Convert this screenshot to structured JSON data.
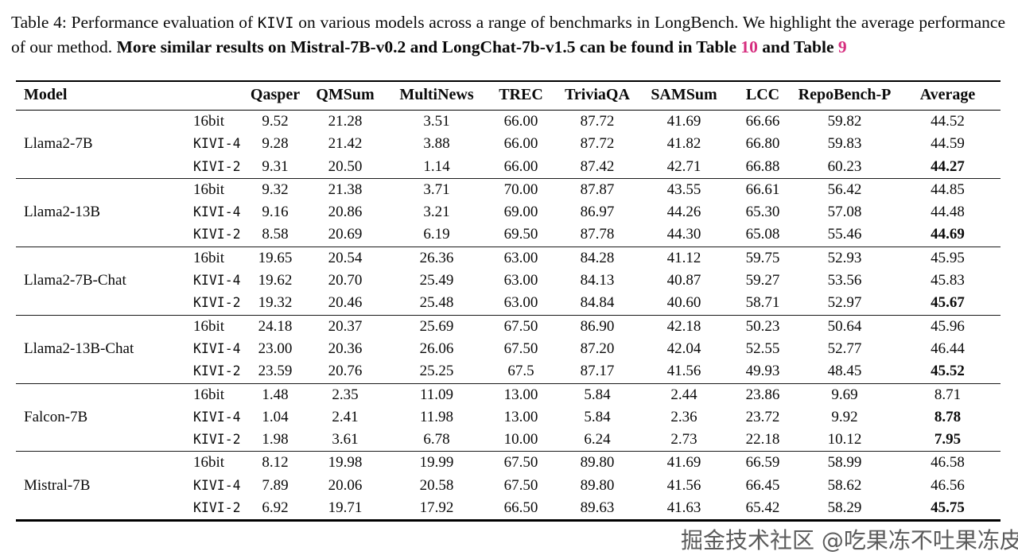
{
  "caption": {
    "prefix": "Table 4: Performance evaluation of ",
    "kivi": "KIVI",
    "middle": " on various models across a range of benchmarks in LongBench. We highlight the average performance of our method. ",
    "bold1": "More similar results on Mistral-7B-v0.2 and LongChat-7b-v1.5 can be found in Table ",
    "ref1": "10",
    "bold2": " and Table ",
    "ref2": "9"
  },
  "accent_color": "#d62e7f",
  "watermark": {
    "text": "掘金技术社区 @吃果冻不吐果冻皮"
  },
  "chart_data": {
    "type": "table",
    "title": "Performance evaluation of KIVI on various models across a range of benchmarks in LongBench"
  },
  "table": {
    "columns": [
      "Model",
      "",
      "Qasper",
      "QMSum",
      "MultiNews",
      "TREC",
      "TriviaQA",
      "SAMSum",
      "LCC",
      "RepoBench-P",
      "Average"
    ],
    "groups": [
      {
        "model": "Llama2-7B",
        "rows": [
          {
            "method": "16bit",
            "mono": false,
            "values": [
              "9.52",
              "21.28",
              "3.51",
              "66.00",
              "87.72",
              "41.69",
              "66.66",
              "59.82"
            ],
            "average": "44.52",
            "average_bold": false
          },
          {
            "method": "KIVI-4",
            "mono": true,
            "values": [
              "9.28",
              "21.42",
              "3.88",
              "66.00",
              "87.72",
              "41.82",
              "66.80",
              "59.83"
            ],
            "average": "44.59",
            "average_bold": false
          },
          {
            "method": "KIVI-2",
            "mono": true,
            "values": [
              "9.31",
              "20.50",
              "1.14",
              "66.00",
              "87.42",
              "42.71",
              "66.88",
              "60.23"
            ],
            "average": "44.27",
            "average_bold": true
          }
        ]
      },
      {
        "model": "Llama2-13B",
        "rows": [
          {
            "method": "16bit",
            "mono": false,
            "values": [
              "9.32",
              "21.38",
              "3.71",
              "70.00",
              "87.87",
              "43.55",
              "66.61",
              "56.42"
            ],
            "average": "44.85",
            "average_bold": false
          },
          {
            "method": "KIVI-4",
            "mono": true,
            "values": [
              "9.16",
              "20.86",
              "3.21",
              "69.00",
              "86.97",
              "44.26",
              "65.30",
              "57.08"
            ],
            "average": "44.48",
            "average_bold": false
          },
          {
            "method": "KIVI-2",
            "mono": true,
            "values": [
              "8.58",
              "20.69",
              "6.19",
              "69.50",
              "87.78",
              "44.30",
              "65.08",
              "55.46"
            ],
            "average": "44.69",
            "average_bold": true
          }
        ]
      },
      {
        "model": "Llama2-7B-Chat",
        "rows": [
          {
            "method": "16bit",
            "mono": false,
            "values": [
              "19.65",
              "20.54",
              "26.36",
              "63.00",
              "84.28",
              "41.12",
              "59.75",
              "52.93"
            ],
            "average": "45.95",
            "average_bold": false
          },
          {
            "method": "KIVI-4",
            "mono": true,
            "values": [
              "19.62",
              "20.70",
              "25.49",
              "63.00",
              "84.13",
              "40.87",
              "59.27",
              "53.56"
            ],
            "average": "45.83",
            "average_bold": false
          },
          {
            "method": "KIVI-2",
            "mono": true,
            "values": [
              "19.32",
              "20.46",
              "25.48",
              "63.00",
              "84.84",
              "40.60",
              "58.71",
              "52.97"
            ],
            "average": "45.67",
            "average_bold": true
          }
        ]
      },
      {
        "model": "Llama2-13B-Chat",
        "rows": [
          {
            "method": "16bit",
            "mono": false,
            "values": [
              "24.18",
              "20.37",
              "25.69",
              "67.50",
              "86.90",
              "42.18",
              "50.23",
              "50.64"
            ],
            "average": "45.96",
            "average_bold": false
          },
          {
            "method": "KIVI-4",
            "mono": true,
            "values": [
              "23.00",
              "20.36",
              "26.06",
              "67.50",
              "87.20",
              "42.04",
              "52.55",
              "52.77"
            ],
            "average": "46.44",
            "average_bold": false
          },
          {
            "method": "KIVI-2",
            "mono": true,
            "values": [
              "23.59",
              "20.76",
              "25.25",
              "67.5",
              "87.17",
              "41.56",
              "49.93",
              "48.45"
            ],
            "average": "45.52",
            "average_bold": true
          }
        ]
      },
      {
        "model": "Falcon-7B",
        "rows": [
          {
            "method": "16bit",
            "mono": false,
            "values": [
              "1.48",
              "2.35",
              "11.09",
              "13.00",
              "5.84",
              "2.44",
              "23.86",
              "9.69"
            ],
            "average": "8.71",
            "average_bold": false
          },
          {
            "method": "KIVI-4",
            "mono": true,
            "values": [
              "1.04",
              "2.41",
              "11.98",
              "13.00",
              "5.84",
              "2.36",
              "23.72",
              "9.92"
            ],
            "average": "8.78",
            "average_bold": true
          },
          {
            "method": "KIVI-2",
            "mono": true,
            "values": [
              "1.98",
              "3.61",
              "6.78",
              "10.00",
              "6.24",
              "2.73",
              "22.18",
              "10.12"
            ],
            "average": "7.95",
            "average_bold": true
          }
        ]
      },
      {
        "model": "Mistral-7B",
        "rows": [
          {
            "method": "16bit",
            "mono": false,
            "values": [
              "8.12",
              "19.98",
              "19.99",
              "67.50",
              "89.80",
              "41.69",
              "66.59",
              "58.99"
            ],
            "average": "46.58",
            "average_bold": false
          },
          {
            "method": "KIVI-4",
            "mono": true,
            "values": [
              "7.89",
              "20.06",
              "20.58",
              "67.50",
              "89.80",
              "41.56",
              "66.45",
              "58.62"
            ],
            "average": "46.56",
            "average_bold": false
          },
          {
            "method": "KIVI-2",
            "mono": true,
            "values": [
              "6.92",
              "19.71",
              "17.92",
              "66.50",
              "89.63",
              "41.63",
              "65.42",
              "58.29"
            ],
            "average": "45.75",
            "average_bold": true
          }
        ]
      }
    ]
  }
}
